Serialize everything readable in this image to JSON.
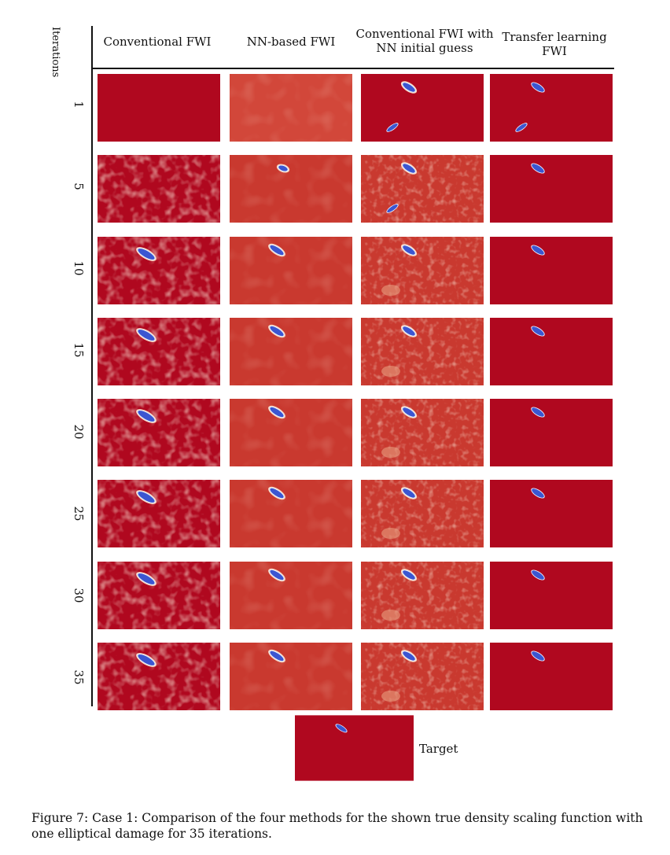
{
  "figure": {
    "iterations_title": "Iterations",
    "column_headers": [
      {
        "line1": "Conventional FWI",
        "line2": ""
      },
      {
        "line1": "NN-based FWI",
        "line2": ""
      },
      {
        "line1": "Conventional FWI with",
        "line2": "NN initial guess"
      },
      {
        "line1": "Transfer learning",
        "line2": "FWI"
      }
    ],
    "iterations": [
      "1",
      "5",
      "10",
      "15",
      "20",
      "25",
      "30",
      "35"
    ],
    "target_label": "Target",
    "caption": "Figure 7: Case 1: Comparison of the four methods for the shown true density scaling function with one elliptical damage for 35 iterations."
  },
  "colors": {
    "background_red": "#b0081f",
    "mid_red": "#c9392f",
    "light": "#f3c5a6",
    "damage_blue": "#3b56d1"
  }
}
